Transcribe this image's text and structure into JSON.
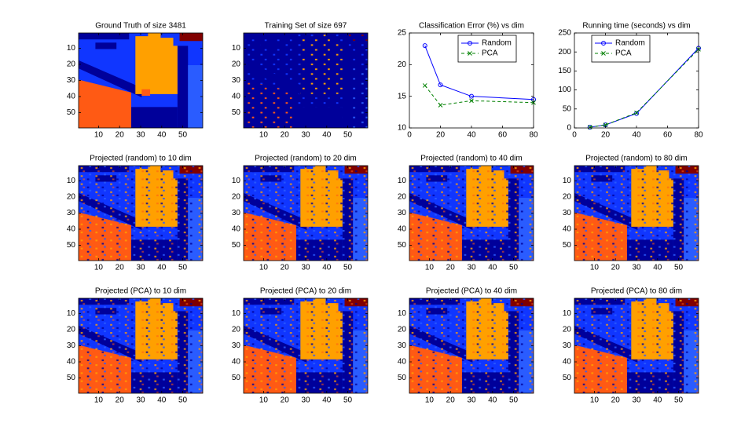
{
  "chart_data": [
    {
      "type": "image",
      "title": "Ground Truth of size 3481",
      "rendering": "ground-truth",
      "xlim": [
        0.5,
        59.5
      ],
      "ylim": [
        0.5,
        59.5
      ],
      "ydir": "reverse",
      "xticks": [
        10,
        20,
        30,
        40,
        50
      ],
      "yticks": [
        10,
        20,
        30,
        40,
        50
      ]
    },
    {
      "type": "image",
      "title": "Training Set of size 697",
      "rendering": "sparse",
      "xlim": [
        0.5,
        59.5
      ],
      "ylim": [
        0.5,
        59.5
      ],
      "ydir": "reverse",
      "xticks": [
        10,
        20,
        30,
        40,
        50
      ],
      "yticks": [
        10,
        20,
        30,
        40,
        50
      ]
    },
    {
      "type": "line",
      "title": "Classification Error (%) vs dim",
      "x": [
        10,
        20,
        40,
        80
      ],
      "xlim": [
        0,
        80
      ],
      "xticks": [
        0,
        20,
        40,
        60,
        80
      ],
      "ylim": [
        10,
        25
      ],
      "yticks": [
        10,
        15,
        20,
        25
      ],
      "legend": "north-east",
      "series": [
        {
          "name": "Random",
          "color": "#0000ff",
          "marker": "o",
          "dash": "solid",
          "values": [
            23,
            16.8,
            15,
            14.5
          ]
        },
        {
          "name": "PCA",
          "color": "#008000",
          "marker": "x",
          "dash": "dashed",
          "values": [
            16.7,
            13.6,
            14.3,
            14
          ]
        }
      ]
    },
    {
      "type": "line",
      "title": "Running time (seconds) vs dim",
      "x": [
        10,
        20,
        40,
        80
      ],
      "xlim": [
        0,
        80
      ],
      "xticks": [
        0,
        20,
        40,
        60,
        80
      ],
      "ylim": [
        0,
        250
      ],
      "yticks": [
        0,
        50,
        100,
        150,
        200,
        250
      ],
      "legend": "north-west",
      "series": [
        {
          "name": "Random",
          "color": "#0000ff",
          "marker": "o",
          "dash": "solid",
          "values": [
            2,
            8,
            38,
            210
          ]
        },
        {
          "name": "PCA",
          "color": "#008000",
          "marker": "x",
          "dash": "dashed",
          "values": [
            2,
            8,
            40,
            207
          ]
        }
      ]
    },
    {
      "type": "image",
      "title": "Projected (random) to 10 dim",
      "rendering": "noisy",
      "xlim": [
        0.5,
        59.5
      ],
      "ylim": [
        0.5,
        59.5
      ],
      "ydir": "reverse",
      "xticks": [
        10,
        20,
        30,
        40,
        50
      ],
      "yticks": [
        10,
        20,
        30,
        40,
        50
      ]
    },
    {
      "type": "image",
      "title": "Projected (random) to 20 dim",
      "rendering": "noisy",
      "xlim": [
        0.5,
        59.5
      ],
      "ylim": [
        0.5,
        59.5
      ],
      "ydir": "reverse",
      "xticks": [
        10,
        20,
        30,
        40,
        50
      ],
      "yticks": [
        10,
        20,
        30,
        40,
        50
      ]
    },
    {
      "type": "image",
      "title": "Projected (random) to 40 dim",
      "rendering": "noisy",
      "xlim": [
        0.5,
        59.5
      ],
      "ylim": [
        0.5,
        59.5
      ],
      "ydir": "reverse",
      "xticks": [
        10,
        20,
        30,
        40,
        50
      ],
      "yticks": [
        10,
        20,
        30,
        40,
        50
      ]
    },
    {
      "type": "image",
      "title": "Projected (random) to 80 dim",
      "rendering": "noisy",
      "xlim": [
        0.5,
        59.5
      ],
      "ylim": [
        0.5,
        59.5
      ],
      "ydir": "reverse",
      "xticks": [
        10,
        20,
        30,
        40,
        50
      ],
      "yticks": [
        10,
        20,
        30,
        40,
        50
      ]
    },
    {
      "type": "image",
      "title": "Projected (PCA) to 10 dim",
      "rendering": "noisy",
      "xlim": [
        0.5,
        59.5
      ],
      "ylim": [
        0.5,
        59.5
      ],
      "ydir": "reverse",
      "xticks": [
        10,
        20,
        30,
        40,
        50
      ],
      "yticks": [
        10,
        20,
        30,
        40,
        50
      ]
    },
    {
      "type": "image",
      "title": "Projected (PCA) to 20 dim",
      "rendering": "noisy",
      "xlim": [
        0.5,
        59.5
      ],
      "ylim": [
        0.5,
        59.5
      ],
      "ydir": "reverse",
      "xticks": [
        10,
        20,
        30,
        40,
        50
      ],
      "yticks": [
        10,
        20,
        30,
        40,
        50
      ]
    },
    {
      "type": "image",
      "title": "Projected (PCA) to 40 dim",
      "rendering": "noisy",
      "xlim": [
        0.5,
        59.5
      ],
      "ylim": [
        0.5,
        59.5
      ],
      "ydir": "reverse",
      "xticks": [
        10,
        20,
        30,
        40,
        50
      ],
      "yticks": [
        10,
        20,
        30,
        40,
        50
      ]
    },
    {
      "type": "image",
      "title": "Projected (PCA) to 80 dim",
      "rendering": "noisy",
      "xlim": [
        0.5,
        59.5
      ],
      "ylim": [
        0.5,
        59.5
      ],
      "ydir": "reverse",
      "xticks": [
        10,
        20,
        30,
        40,
        50
      ],
      "yticks": [
        10,
        20,
        30,
        40,
        50
      ]
    }
  ]
}
